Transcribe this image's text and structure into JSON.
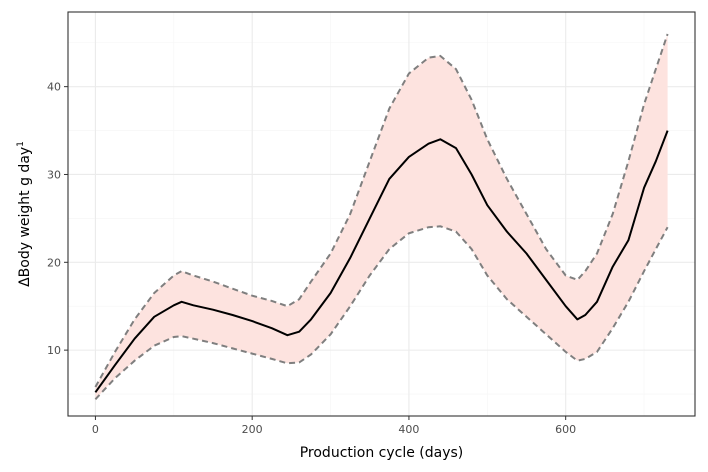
{
  "chart_data": {
    "type": "line",
    "title": "",
    "xlabel": "Production cycle (days)",
    "ylabel": "ΔBody weight g day",
    "ylabel_superscript": "1",
    "xlim": [
      -35,
      765
    ],
    "ylim": [
      2.5,
      48.5
    ],
    "x_ticks": [
      0,
      200,
      400,
      600
    ],
    "y_ticks": [
      10,
      20,
      30,
      40
    ],
    "grid": true,
    "legend": "none",
    "colors": {
      "band_fill": "#fde3df",
      "mean_line": "#000000",
      "bound_line": "#7f7f7f"
    },
    "series": [
      {
        "role": "mean",
        "style": "solid",
        "x": [
          0,
          25,
          50,
          75,
          100,
          110,
          125,
          150,
          175,
          200,
          225,
          245,
          260,
          275,
          300,
          325,
          350,
          375,
          400,
          425,
          440,
          460,
          480,
          500,
          525,
          550,
          575,
          600,
          615,
          625,
          640,
          660,
          680,
          700,
          715,
          730
        ],
        "y": [
          5.2,
          8.3,
          11.3,
          13.8,
          15.1,
          15.5,
          15.1,
          14.6,
          14.0,
          13.3,
          12.5,
          11.7,
          12.1,
          13.5,
          16.5,
          20.5,
          25.0,
          29.5,
          32.0,
          33.5,
          34.0,
          33.0,
          30.0,
          26.5,
          23.5,
          21.0,
          18.0,
          15.0,
          13.5,
          14.0,
          15.5,
          19.5,
          22.5,
          28.5,
          31.5,
          35.0
        ]
      },
      {
        "role": "upper",
        "style": "dashed",
        "x": [
          0,
          25,
          50,
          75,
          100,
          110,
          125,
          150,
          175,
          200,
          225,
          245,
          260,
          275,
          300,
          325,
          350,
          375,
          400,
          425,
          440,
          460,
          480,
          500,
          525,
          550,
          575,
          600,
          615,
          625,
          640,
          660,
          680,
          700,
          715,
          730
        ],
        "y": [
          5.8,
          9.8,
          13.5,
          16.5,
          18.5,
          19.0,
          18.5,
          17.8,
          17.0,
          16.2,
          15.6,
          15.0,
          15.8,
          17.8,
          21.0,
          25.5,
          31.5,
          37.5,
          41.5,
          43.3,
          43.5,
          42.0,
          38.5,
          34.0,
          29.5,
          25.5,
          21.5,
          18.5,
          18.0,
          19.0,
          21.0,
          25.5,
          31.5,
          38.0,
          42.0,
          46.0
        ]
      },
      {
        "role": "lower",
        "style": "dashed",
        "x": [
          0,
          25,
          50,
          75,
          100,
          110,
          125,
          150,
          175,
          200,
          225,
          245,
          260,
          275,
          300,
          325,
          350,
          375,
          400,
          425,
          440,
          460,
          480,
          500,
          525,
          550,
          575,
          600,
          615,
          625,
          640,
          660,
          680,
          700,
          715,
          730
        ],
        "y": [
          4.4,
          6.8,
          8.8,
          10.5,
          11.5,
          11.6,
          11.3,
          10.8,
          10.2,
          9.6,
          9.0,
          8.5,
          8.6,
          9.5,
          11.8,
          15.0,
          18.5,
          21.5,
          23.3,
          24.0,
          24.1,
          23.5,
          21.5,
          18.5,
          15.8,
          13.8,
          11.8,
          9.8,
          8.8,
          9.0,
          9.8,
          12.5,
          15.5,
          19.0,
          21.5,
          24.0
        ]
      }
    ]
  }
}
